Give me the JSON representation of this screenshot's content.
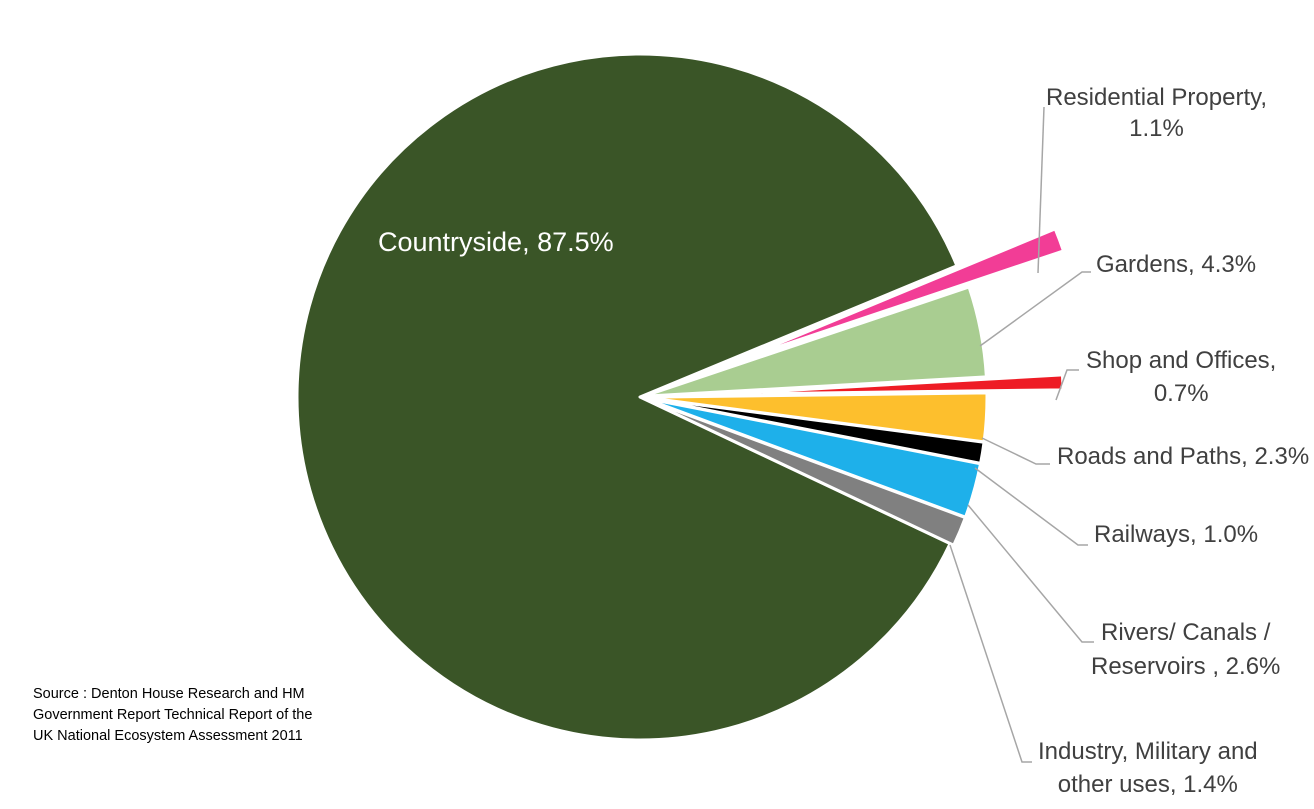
{
  "chart_data": {
    "type": "pie",
    "title": "",
    "unit": "%",
    "slices": [
      {
        "label": "Countryside",
        "value": 87.5,
        "color": "#3a5527",
        "lines": [
          "Countryside, 87.5%"
        ]
      },
      {
        "label": "Residential Property",
        "value": 1.1,
        "color": "#f23d96",
        "lines": [
          "Residential Property,",
          "1.1%"
        ]
      },
      {
        "label": "Gardens",
        "value": 4.3,
        "color": "#a9cd91",
        "lines": [
          "Gardens, 4.3%"
        ]
      },
      {
        "label": "Shop and Offices",
        "value": 0.7,
        "color": "#ee1c25",
        "lines": [
          "Shop and Offices,",
          "0.7%"
        ]
      },
      {
        "label": "Roads and Paths",
        "value": 2.3,
        "color": "#fdbf2d",
        "lines": [
          "Roads and Paths, 2.3%"
        ]
      },
      {
        "label": "Railways",
        "value": 1.0,
        "color": "#000000",
        "lines": [
          "Railways, 1.0%"
        ]
      },
      {
        "label": "Rivers/ Canals / Reservoirs",
        "value": 2.6,
        "color": "#1eb0ea",
        "lines": [
          "Rivers/ Canals /",
          "Reservoirs  , 2.6%"
        ]
      },
      {
        "label": "Industry, Military and other uses",
        "value": 1.4,
        "color": "#808080",
        "lines": [
          "Industry, Military and",
          "other uses, 1.4%"
        ]
      }
    ],
    "legend": "none",
    "label_placement": "outside with leader lines; Countryside inside"
  },
  "source_note": {
    "lines": [
      "Source : Denton House Research and HM",
      "Government Report Technical Report of the",
      "UK National Ecosystem Assessment 2011"
    ]
  }
}
